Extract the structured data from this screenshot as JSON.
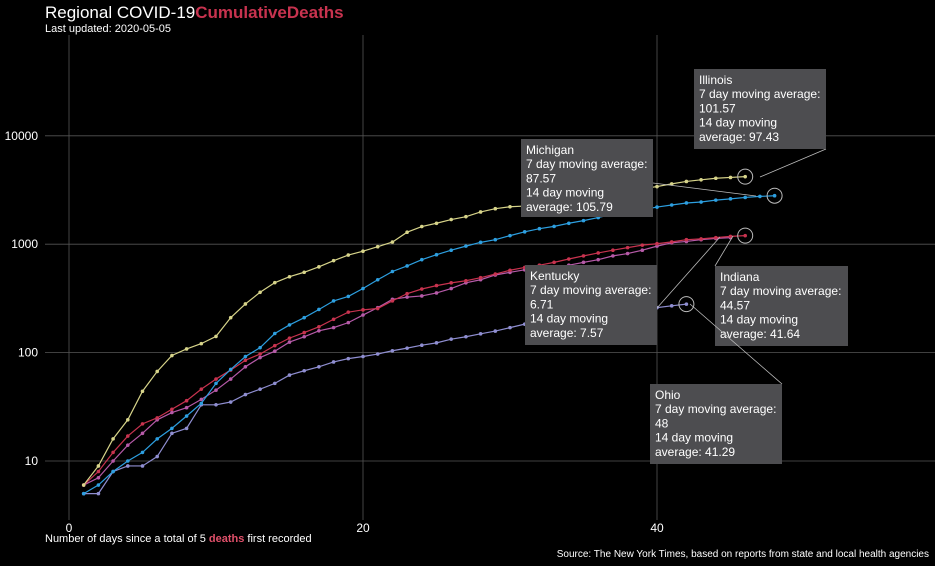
{
  "header": {
    "title_prefix": "Regional COVID-19",
    "title_accent": "CumulativeDeaths",
    "subtitle": "Last updated: 2020-05-05"
  },
  "footer": {
    "xlabel_prefix": "Number of days since a total of 5",
    "xlabel_accent": "deaths",
    "xlabel_suffix": "first recorded",
    "caption": "Source: The New York Times, based on reports from state and local health agencies"
  },
  "chart_data": {
    "type": "line",
    "y_scale": "log",
    "xlim": [
      -2,
      59
    ],
    "x_ticks": [
      0,
      20,
      40
    ],
    "y_ticks": [
      10,
      100,
      1000,
      10000
    ],
    "grid": true,
    "legend": "none",
    "colors": {
      "Illinois": "#d7d48a",
      "Michigan": "#2d9fe0",
      "Indiana": "#c8334f",
      "Kentucky": "#b65aa8",
      "Ohio": "#8f8ed1",
      "background": "#000000",
      "grid": "#555555",
      "annotation_box": "#4d4d50"
    },
    "series": [
      {
        "name": "Illinois",
        "color": "#d7d48a",
        "x": [
          1,
          2,
          3,
          4,
          5,
          6,
          7,
          8,
          9,
          10,
          11,
          12,
          13,
          14,
          15,
          16,
          17,
          18,
          19,
          20,
          21,
          22,
          23,
          24,
          25,
          26,
          27,
          28,
          29,
          30,
          31,
          32,
          33,
          34,
          35,
          36,
          37,
          38,
          39,
          40,
          41,
          42,
          43,
          44,
          45,
          46
        ],
        "y": [
          6,
          9,
          16,
          24,
          44,
          67,
          94,
          108,
          121,
          141,
          210,
          281,
          360,
          442,
          501,
          551,
          618,
          705,
          794,
          862,
          948,
          1046,
          1290,
          1455,
          1560,
          1688,
          1795,
          1983,
          2125,
          2215,
          2249,
          2350,
          2457,
          2559,
          2618,
          2838,
          3010,
          3100,
          3250,
          3400,
          3600,
          3792,
          3928,
          4058,
          4129,
          4200
        ],
        "marker_last": true,
        "annotation": {
          "state": "Illinois",
          "line1": "7 day moving average:",
          "avg7": "101.57",
          "line3": "14 day moving",
          "line4": "average: 97.43"
        }
      },
      {
        "name": "Michigan",
        "color": "#2d9fe0",
        "x": [
          1,
          2,
          3,
          4,
          5,
          6,
          7,
          8,
          9,
          10,
          11,
          12,
          13,
          14,
          15,
          16,
          17,
          18,
          19,
          20,
          21,
          22,
          23,
          24,
          25,
          26,
          27,
          28,
          29,
          30,
          31,
          32,
          33,
          34,
          35,
          36,
          37,
          38,
          39,
          40,
          41,
          42,
          43,
          44,
          45,
          46,
          47,
          48
        ],
        "y": [
          5,
          6,
          8,
          10,
          12,
          16,
          20,
          26,
          34,
          52,
          70,
          92,
          111,
          150,
          180,
          210,
          250,
          300,
          330,
          390,
          470,
          560,
          630,
          720,
          800,
          880,
          960,
          1040,
          1100,
          1200,
          1300,
          1390,
          1460,
          1560,
          1650,
          1760,
          1900,
          1980,
          2080,
          2200,
          2300,
          2400,
          2450,
          2550,
          2620,
          2700,
          2760,
          2800
        ],
        "marker_last": true,
        "annotation": {
          "state": "Michigan",
          "line1": "7 day moving average:",
          "avg7": "87.57",
          "line3": "14 day moving",
          "line4": "average: 105.79"
        }
      },
      {
        "name": "Indiana",
        "color": "#c8334f",
        "x": [
          1,
          2,
          3,
          4,
          5,
          6,
          7,
          8,
          9,
          10,
          11,
          12,
          13,
          14,
          15,
          16,
          17,
          18,
          19,
          20,
          21,
          22,
          23,
          24,
          25,
          26,
          27,
          28,
          29,
          30,
          31,
          32,
          33,
          34,
          35,
          36,
          37,
          38,
          39,
          40,
          41,
          42,
          43,
          44,
          45,
          46
        ],
        "y": [
          6,
          8,
          12,
          17,
          22,
          25,
          30,
          36,
          46,
          57,
          69,
          85,
          97,
          116,
          136,
          153,
          173,
          203,
          236,
          248,
          255,
          300,
          350,
          386,
          415,
          440,
          460,
          491,
          530,
          575,
          610,
          640,
          680,
          730,
          780,
          830,
          880,
          930,
          980,
          1010,
          1050,
          1100,
          1120,
          1150,
          1180,
          1200
        ],
        "marker_last": true,
        "annotation": {
          "state": "Indiana",
          "line1": "7 day moving average:",
          "avg7": "44.57",
          "line3": "14 day moving",
          "line4": "average: 41.64"
        }
      },
      {
        "name": "Kentucky",
        "color": "#b65aa8",
        "x": [
          1,
          2,
          3,
          4,
          5,
          6,
          7,
          8,
          9,
          10,
          11,
          12,
          13,
          14,
          15,
          16,
          17,
          18,
          19,
          20,
          21,
          22,
          23,
          24,
          25,
          26,
          27,
          28,
          29,
          30,
          31,
          32,
          33,
          34,
          35,
          36,
          37,
          38,
          39,
          40,
          41,
          42,
          43,
          44,
          45
        ],
        "y": [
          6,
          7,
          10,
          14,
          18,
          24,
          28,
          31,
          37,
          45,
          57,
          74,
          90,
          103,
          125,
          140,
          159,
          170,
          189,
          222,
          260,
          310,
          325,
          333,
          355,
          390,
          440,
          470,
          520,
          550,
          580,
          600,
          610,
          640,
          680,
          720,
          780,
          820,
          880,
          960,
          1030,
          1060,
          1100,
          1130,
          1150
        ],
        "marker_last": false,
        "annotation": {
          "state": "Kentucky",
          "line1": "7 day moving average:",
          "avg7": "6.71",
          "line3": "14 day moving",
          "line4": "average: 7.57"
        }
      },
      {
        "name": "Ohio",
        "color": "#8f8ed1",
        "x": [
          1,
          2,
          3,
          4,
          5,
          6,
          7,
          8,
          9,
          10,
          11,
          12,
          13,
          14,
          15,
          16,
          17,
          18,
          19,
          20,
          21,
          22,
          23,
          24,
          25,
          26,
          27,
          28,
          29,
          30,
          31,
          32,
          33,
          34,
          35,
          36,
          37,
          38,
          39,
          40,
          41,
          42
        ],
        "y": [
          5,
          5,
          8,
          9,
          9,
          11,
          18,
          20,
          33,
          33,
          35,
          41,
          46,
          52,
          62,
          68,
          74,
          82,
          88,
          92,
          97,
          104,
          110,
          117,
          123,
          133,
          140,
          149,
          158,
          170,
          183,
          193,
          202,
          212,
          220,
          230,
          238,
          246,
          253,
          260,
          270,
          280
        ],
        "marker_last": true,
        "annotation": {
          "state": "Ohio",
          "line1": "7 day moving average:",
          "avg7": "48",
          "line3": "14 day moving",
          "line4": "average: 41.29"
        }
      }
    ]
  }
}
